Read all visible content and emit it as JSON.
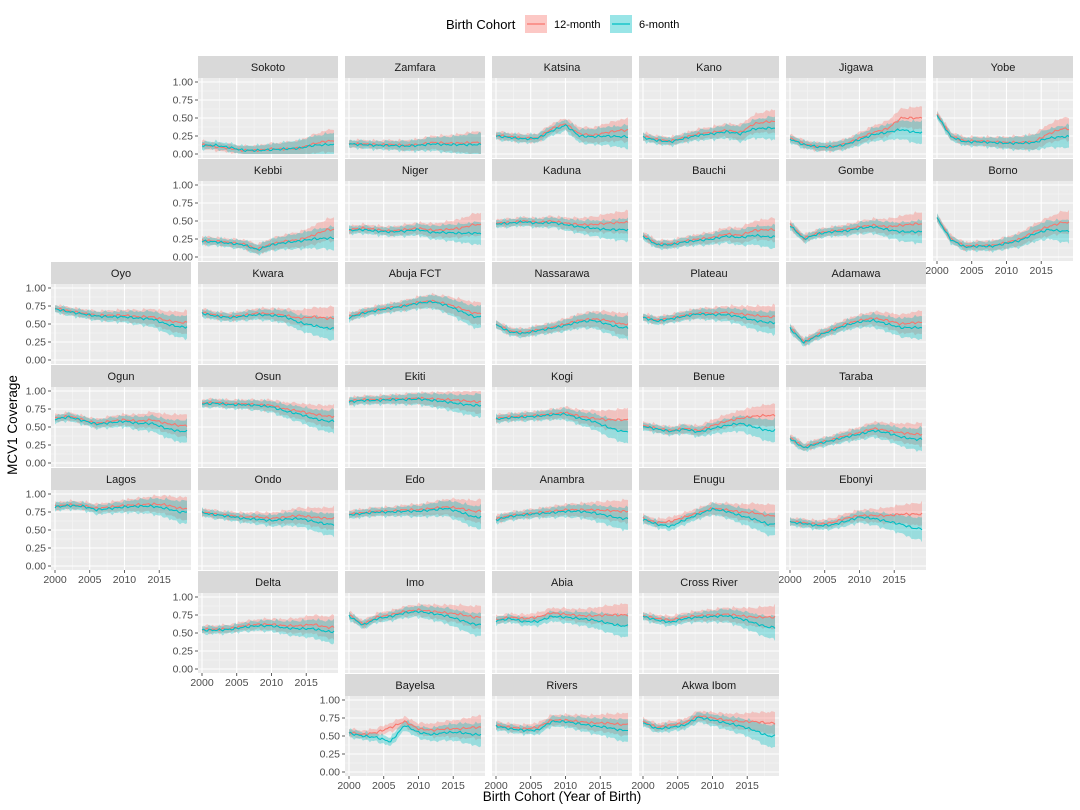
{
  "chart_data": {
    "type": "line",
    "subtype": "faceted line with ribbons (small multiples)",
    "xlabel": "Birth Cohort (Year of Birth)",
    "ylabel": "MCV1 Coverage",
    "xlim": [
      2000,
      2019
    ],
    "ylim": [
      0,
      1
    ],
    "x_ticks": [
      2000,
      2005,
      2010,
      2015
    ],
    "y_ticks": [
      0.0,
      0.25,
      0.5,
      0.75,
      1.0
    ],
    "y_tick_labels": [
      "0.00",
      "0.25",
      "0.50",
      "0.75",
      "1.00"
    ],
    "legend": {
      "title": "Birth Cohort",
      "position": "top",
      "entries": [
        {
          "name": "12-month",
          "color": "#F8766D"
        },
        {
          "name": "6-month",
          "color": "#00BFC4"
        }
      ]
    },
    "x": [
      2000,
      2002,
      2004,
      2006,
      2008,
      2010,
      2012,
      2014,
      2016,
      2018
    ],
    "facets": [
      {
        "name": "Sokoto",
        "grid_row": 0,
        "grid_col": 1,
        "m12": [
          0.13,
          0.1,
          0.08,
          0.05,
          0.05,
          0.07,
          0.07,
          0.08,
          0.14,
          0.18
        ],
        "m6": [
          0.12,
          0.12,
          0.09,
          0.05,
          0.05,
          0.06,
          0.07,
          0.08,
          0.12,
          0.13
        ],
        "ylabels": true,
        "xlabels": false
      },
      {
        "name": "Zamfara",
        "grid_row": 0,
        "grid_col": 2,
        "m12": [
          0.14,
          0.14,
          0.13,
          0.13,
          0.12,
          0.13,
          0.16,
          0.15,
          0.15,
          0.16
        ],
        "m6": [
          0.14,
          0.13,
          0.12,
          0.12,
          0.11,
          0.12,
          0.14,
          0.13,
          0.13,
          0.13
        ],
        "ylabels": false,
        "xlabels": false
      },
      {
        "name": "Katsina",
        "grid_row": 0,
        "grid_col": 3,
        "m12": [
          0.26,
          0.24,
          0.22,
          0.22,
          0.35,
          0.42,
          0.28,
          0.26,
          0.3,
          0.33
        ],
        "m6": [
          0.25,
          0.23,
          0.21,
          0.22,
          0.32,
          0.4,
          0.25,
          0.24,
          0.25,
          0.24
        ],
        "ylabels": false,
        "xlabels": false
      },
      {
        "name": "Kano",
        "grid_row": 0,
        "grid_col": 4,
        "m12": [
          0.25,
          0.2,
          0.18,
          0.23,
          0.28,
          0.3,
          0.33,
          0.3,
          0.42,
          0.45
        ],
        "m6": [
          0.23,
          0.19,
          0.17,
          0.22,
          0.26,
          0.28,
          0.31,
          0.28,
          0.35,
          0.36
        ],
        "ylabels": false,
        "xlabels": false
      },
      {
        "name": "Jigawa",
        "grid_row": 0,
        "grid_col": 5,
        "m12": [
          0.22,
          0.14,
          0.1,
          0.1,
          0.14,
          0.22,
          0.3,
          0.35,
          0.5,
          0.5
        ],
        "m6": [
          0.21,
          0.13,
          0.1,
          0.1,
          0.13,
          0.2,
          0.27,
          0.3,
          0.34,
          0.3
        ],
        "ylabels": false,
        "xlabels": false
      },
      {
        "name": "Yobe",
        "grid_row": 0,
        "grid_col": 6,
        "m12": [
          0.55,
          0.25,
          0.18,
          0.18,
          0.17,
          0.16,
          0.16,
          0.17,
          0.28,
          0.35
        ],
        "m6": [
          0.54,
          0.24,
          0.17,
          0.17,
          0.16,
          0.15,
          0.15,
          0.16,
          0.22,
          0.24
        ],
        "ylabels": false,
        "xlabels": false
      },
      {
        "name": "Kebbi",
        "grid_row": 1,
        "grid_col": 1,
        "m12": [
          0.23,
          0.22,
          0.2,
          0.18,
          0.11,
          0.18,
          0.22,
          0.24,
          0.3,
          0.38
        ],
        "m6": [
          0.22,
          0.21,
          0.19,
          0.17,
          0.1,
          0.17,
          0.2,
          0.22,
          0.25,
          0.26
        ],
        "ylabels": true,
        "xlabels": false
      },
      {
        "name": "Niger",
        "grid_row": 1,
        "grid_col": 2,
        "m12": [
          0.38,
          0.4,
          0.38,
          0.36,
          0.38,
          0.4,
          0.37,
          0.38,
          0.4,
          0.45
        ],
        "m6": [
          0.37,
          0.38,
          0.36,
          0.35,
          0.36,
          0.38,
          0.34,
          0.34,
          0.33,
          0.33
        ],
        "ylabels": false,
        "xlabels": false
      },
      {
        "name": "Kaduna",
        "grid_row": 1,
        "grid_col": 3,
        "m12": [
          0.47,
          0.48,
          0.5,
          0.48,
          0.5,
          0.47,
          0.45,
          0.45,
          0.47,
          0.48
        ],
        "m6": [
          0.46,
          0.47,
          0.49,
          0.47,
          0.48,
          0.45,
          0.42,
          0.4,
          0.38,
          0.38
        ],
        "ylabels": false,
        "xlabels": false
      },
      {
        "name": "Bauchi",
        "grid_row": 1,
        "grid_col": 4,
        "m12": [
          0.3,
          0.18,
          0.18,
          0.22,
          0.25,
          0.27,
          0.32,
          0.3,
          0.37,
          0.38
        ],
        "m6": [
          0.29,
          0.17,
          0.17,
          0.21,
          0.23,
          0.25,
          0.29,
          0.27,
          0.3,
          0.28
        ],
        "ylabels": false,
        "xlabels": false
      },
      {
        "name": "Gombe",
        "grid_row": 1,
        "grid_col": 5,
        "m12": [
          0.45,
          0.26,
          0.33,
          0.36,
          0.38,
          0.42,
          0.44,
          0.42,
          0.44,
          0.46
        ],
        "m6": [
          0.44,
          0.25,
          0.32,
          0.35,
          0.36,
          0.4,
          0.42,
          0.38,
          0.35,
          0.35
        ],
        "ylabels": false,
        "xlabels": false
      },
      {
        "name": "Borno",
        "grid_row": 1,
        "grid_col": 6,
        "m12": [
          0.55,
          0.25,
          0.15,
          0.16,
          0.16,
          0.2,
          0.25,
          0.35,
          0.42,
          0.48
        ],
        "m6": [
          0.54,
          0.24,
          0.14,
          0.15,
          0.15,
          0.19,
          0.23,
          0.32,
          0.38,
          0.36
        ],
        "ylabels": false,
        "xlabels": true
      },
      {
        "name": "Oyo",
        "grid_row": 2,
        "grid_col": 0,
        "m12": [
          0.72,
          0.68,
          0.65,
          0.62,
          0.62,
          0.62,
          0.6,
          0.6,
          0.55,
          0.52
        ],
        "m6": [
          0.71,
          0.67,
          0.64,
          0.61,
          0.6,
          0.6,
          0.58,
          0.57,
          0.5,
          0.46
        ],
        "ylabels": true,
        "xlabels": false
      },
      {
        "name": "Kwara",
        "grid_row": 2,
        "grid_col": 1,
        "m12": [
          0.66,
          0.62,
          0.6,
          0.62,
          0.65,
          0.64,
          0.62,
          0.58,
          0.6,
          0.58
        ],
        "m6": [
          0.65,
          0.61,
          0.59,
          0.61,
          0.63,
          0.62,
          0.6,
          0.52,
          0.48,
          0.44
        ],
        "ylabels": false,
        "xlabels": false
      },
      {
        "name": "Abuja FCT",
        "grid_row": 2,
        "grid_col": 2,
        "m12": [
          0.6,
          0.66,
          0.7,
          0.73,
          0.76,
          0.8,
          0.82,
          0.78,
          0.72,
          0.65
        ],
        "m6": [
          0.59,
          0.65,
          0.69,
          0.72,
          0.75,
          0.79,
          0.81,
          0.76,
          0.68,
          0.6
        ],
        "ylabels": false,
        "xlabels": false
      },
      {
        "name": "Nassarawa",
        "grid_row": 2,
        "grid_col": 3,
        "m12": [
          0.5,
          0.4,
          0.38,
          0.42,
          0.45,
          0.5,
          0.55,
          0.57,
          0.55,
          0.5
        ],
        "m6": [
          0.49,
          0.39,
          0.37,
          0.41,
          0.44,
          0.48,
          0.53,
          0.55,
          0.5,
          0.45
        ],
        "ylabels": false,
        "xlabels": false
      },
      {
        "name": "Plateau",
        "grid_row": 2,
        "grid_col": 4,
        "m12": [
          0.6,
          0.55,
          0.58,
          0.62,
          0.65,
          0.65,
          0.66,
          0.64,
          0.62,
          0.6
        ],
        "m6": [
          0.59,
          0.54,
          0.57,
          0.61,
          0.64,
          0.63,
          0.63,
          0.6,
          0.55,
          0.52
        ],
        "ylabels": false,
        "xlabels": false
      },
      {
        "name": "Adamawa",
        "grid_row": 2,
        "grid_col": 5,
        "m12": [
          0.45,
          0.25,
          0.35,
          0.42,
          0.5,
          0.55,
          0.58,
          0.55,
          0.5,
          0.52
        ],
        "m6": [
          0.44,
          0.24,
          0.34,
          0.41,
          0.48,
          0.53,
          0.55,
          0.5,
          0.45,
          0.45
        ],
        "ylabels": false,
        "xlabels": false
      },
      {
        "name": "Ogun",
        "grid_row": 3,
        "grid_col": 0,
        "m12": [
          0.62,
          0.65,
          0.6,
          0.55,
          0.58,
          0.6,
          0.58,
          0.6,
          0.55,
          0.52
        ],
        "m6": [
          0.61,
          0.64,
          0.59,
          0.54,
          0.56,
          0.58,
          0.55,
          0.55,
          0.48,
          0.44
        ],
        "ylabels": true,
        "xlabels": false
      },
      {
        "name": "Osun",
        "grid_row": 3,
        "grid_col": 1,
        "m12": [
          0.83,
          0.84,
          0.82,
          0.82,
          0.81,
          0.8,
          0.75,
          0.72,
          0.68,
          0.65
        ],
        "m6": [
          0.82,
          0.83,
          0.81,
          0.81,
          0.8,
          0.78,
          0.72,
          0.68,
          0.62,
          0.58
        ],
        "ylabels": false,
        "xlabels": false
      },
      {
        "name": "Ekiti",
        "grid_row": 3,
        "grid_col": 2,
        "m12": [
          0.86,
          0.88,
          0.88,
          0.89,
          0.89,
          0.9,
          0.89,
          0.88,
          0.87,
          0.85
        ],
        "m6": [
          0.85,
          0.87,
          0.87,
          0.88,
          0.88,
          0.89,
          0.87,
          0.85,
          0.82,
          0.8
        ],
        "ylabels": false,
        "xlabels": false
      },
      {
        "name": "Kogi",
        "grid_row": 3,
        "grid_col": 3,
        "m12": [
          0.62,
          0.64,
          0.65,
          0.66,
          0.68,
          0.7,
          0.65,
          0.62,
          0.6,
          0.6
        ],
        "m6": [
          0.61,
          0.63,
          0.64,
          0.65,
          0.67,
          0.68,
          0.62,
          0.58,
          0.5,
          0.44
        ],
        "ylabels": false,
        "xlabels": false
      },
      {
        "name": "Benue",
        "grid_row": 3,
        "grid_col": 4,
        "m12": [
          0.52,
          0.48,
          0.45,
          0.48,
          0.45,
          0.52,
          0.58,
          0.62,
          0.65,
          0.66
        ],
        "m6": [
          0.51,
          0.47,
          0.44,
          0.47,
          0.43,
          0.48,
          0.52,
          0.55,
          0.5,
          0.45
        ],
        "ylabels": false,
        "xlabels": false
      },
      {
        "name": "Taraba",
        "grid_row": 3,
        "grid_col": 5,
        "m12": [
          0.35,
          0.22,
          0.28,
          0.32,
          0.38,
          0.42,
          0.48,
          0.45,
          0.42,
          0.4
        ],
        "m6": [
          0.34,
          0.21,
          0.27,
          0.31,
          0.36,
          0.4,
          0.45,
          0.42,
          0.36,
          0.33
        ],
        "ylabels": false,
        "xlabels": false
      },
      {
        "name": "Lagos",
        "grid_row": 4,
        "grid_col": 0,
        "m12": [
          0.83,
          0.85,
          0.84,
          0.8,
          0.82,
          0.84,
          0.85,
          0.86,
          0.85,
          0.8
        ],
        "m6": [
          0.82,
          0.84,
          0.83,
          0.78,
          0.8,
          0.82,
          0.83,
          0.83,
          0.8,
          0.75
        ],
        "ylabels": true,
        "xlabels": true
      },
      {
        "name": "Ondo",
        "grid_row": 4,
        "grid_col": 1,
        "m12": [
          0.75,
          0.72,
          0.7,
          0.68,
          0.68,
          0.66,
          0.68,
          0.7,
          0.68,
          0.66
        ],
        "m6": [
          0.74,
          0.71,
          0.69,
          0.66,
          0.65,
          0.63,
          0.65,
          0.66,
          0.62,
          0.58
        ],
        "ylabels": false,
        "xlabels": false
      },
      {
        "name": "Edo",
        "grid_row": 4,
        "grid_col": 2,
        "m12": [
          0.72,
          0.74,
          0.76,
          0.76,
          0.78,
          0.78,
          0.8,
          0.82,
          0.8,
          0.76
        ],
        "m6": [
          0.71,
          0.73,
          0.75,
          0.75,
          0.76,
          0.76,
          0.78,
          0.8,
          0.75,
          0.68
        ],
        "ylabels": false,
        "xlabels": false
      },
      {
        "name": "Anambra",
        "grid_row": 4,
        "grid_col": 3,
        "m12": [
          0.65,
          0.7,
          0.72,
          0.74,
          0.76,
          0.78,
          0.78,
          0.78,
          0.77,
          0.76
        ],
        "m6": [
          0.64,
          0.69,
          0.71,
          0.73,
          0.74,
          0.76,
          0.76,
          0.74,
          0.7,
          0.66
        ],
        "ylabels": false,
        "xlabels": false
      },
      {
        "name": "Enugu",
        "grid_row": 4,
        "grid_col": 4,
        "m12": [
          0.66,
          0.6,
          0.62,
          0.68,
          0.74,
          0.8,
          0.78,
          0.75,
          0.74,
          0.7
        ],
        "m6": [
          0.65,
          0.58,
          0.55,
          0.64,
          0.72,
          0.79,
          0.76,
          0.7,
          0.65,
          0.58
        ],
        "ylabels": false,
        "xlabels": false
      },
      {
        "name": "Ebonyi",
        "grid_row": 4,
        "grid_col": 5,
        "m12": [
          0.62,
          0.6,
          0.58,
          0.6,
          0.66,
          0.7,
          0.7,
          0.7,
          0.72,
          0.72
        ],
        "m6": [
          0.61,
          0.59,
          0.56,
          0.57,
          0.62,
          0.68,
          0.66,
          0.62,
          0.58,
          0.52
        ],
        "ylabels": false,
        "xlabels": true
      },
      {
        "name": "Delta",
        "grid_row": 5,
        "grid_col": 1,
        "m12": [
          0.55,
          0.55,
          0.56,
          0.6,
          0.62,
          0.62,
          0.6,
          0.6,
          0.62,
          0.58
        ],
        "m6": [
          0.54,
          0.54,
          0.55,
          0.58,
          0.6,
          0.6,
          0.57,
          0.56,
          0.56,
          0.52
        ],
        "ylabels": true,
        "xlabels": true
      },
      {
        "name": "Imo",
        "grid_row": 5,
        "grid_col": 2,
        "m12": [
          0.75,
          0.62,
          0.72,
          0.75,
          0.8,
          0.82,
          0.8,
          0.78,
          0.76,
          0.72
        ],
        "m6": [
          0.74,
          0.61,
          0.7,
          0.73,
          0.78,
          0.8,
          0.77,
          0.74,
          0.68,
          0.62
        ],
        "ylabels": false,
        "xlabels": false
      },
      {
        "name": "Abia",
        "grid_row": 5,
        "grid_col": 3,
        "m12": [
          0.68,
          0.72,
          0.7,
          0.72,
          0.78,
          0.76,
          0.74,
          0.74,
          0.75,
          0.75
        ],
        "m6": [
          0.67,
          0.7,
          0.66,
          0.66,
          0.73,
          0.72,
          0.7,
          0.68,
          0.64,
          0.6
        ],
        "ylabels": false,
        "xlabels": false
      },
      {
        "name": "Cross River",
        "grid_row": 5,
        "grid_col": 4,
        "m12": [
          0.74,
          0.7,
          0.68,
          0.72,
          0.74,
          0.75,
          0.76,
          0.74,
          0.72,
          0.72
        ],
        "m6": [
          0.73,
          0.68,
          0.65,
          0.7,
          0.72,
          0.73,
          0.74,
          0.7,
          0.64,
          0.58
        ],
        "ylabels": false,
        "xlabels": false
      },
      {
        "name": "Bayelsa",
        "grid_row": 6,
        "grid_col": 2,
        "m12": [
          0.55,
          0.52,
          0.55,
          0.62,
          0.7,
          0.6,
          0.58,
          0.6,
          0.6,
          0.62
        ],
        "m6": [
          0.54,
          0.5,
          0.48,
          0.42,
          0.65,
          0.55,
          0.52,
          0.55,
          0.55,
          0.52
        ],
        "ylabels": true,
        "xlabels": true
      },
      {
        "name": "Rivers",
        "grid_row": 6,
        "grid_col": 3,
        "m12": [
          0.65,
          0.62,
          0.6,
          0.62,
          0.72,
          0.72,
          0.7,
          0.68,
          0.68,
          0.66
        ],
        "m6": [
          0.64,
          0.6,
          0.58,
          0.58,
          0.7,
          0.7,
          0.67,
          0.64,
          0.62,
          0.58
        ],
        "ylabels": false,
        "xlabels": true
      },
      {
        "name": "Akwa Ibom",
        "grid_row": 6,
        "grid_col": 4,
        "m12": [
          0.7,
          0.62,
          0.65,
          0.68,
          0.78,
          0.75,
          0.72,
          0.7,
          0.7,
          0.68
        ],
        "m6": [
          0.69,
          0.6,
          0.62,
          0.65,
          0.76,
          0.72,
          0.68,
          0.64,
          0.58,
          0.5
        ],
        "ylabels": false,
        "xlabels": true
      }
    ]
  }
}
